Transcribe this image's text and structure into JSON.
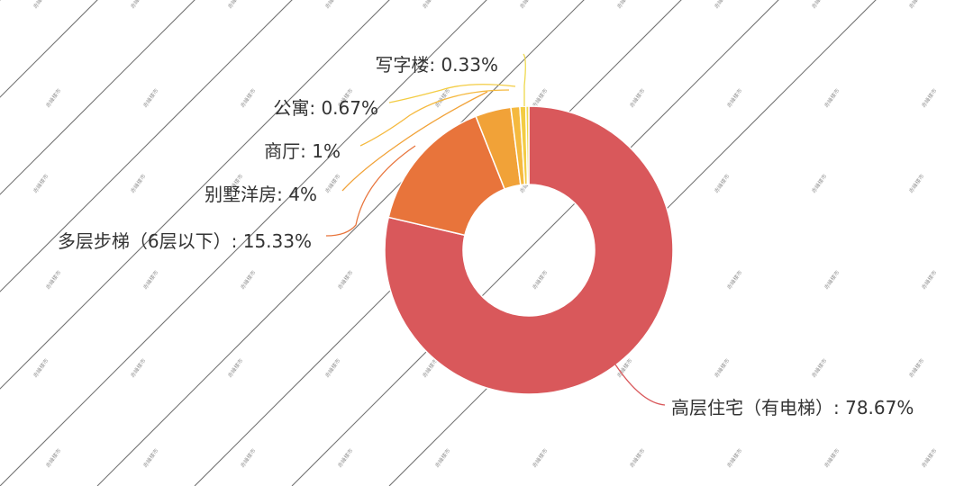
{
  "watermark": {
    "text": "赤峰楼市",
    "line_color": "#5a5a5a"
  },
  "chart_data": {
    "type": "pie",
    "subtype": "donut",
    "title": "",
    "slices": [
      {
        "label": "高层住宅（有电梯）",
        "percent_text": "78.67%",
        "value": 78.67,
        "color": "#d9585b"
      },
      {
        "label": "多层步梯（6层以下）",
        "percent_text": "15.33%",
        "value": 15.33,
        "color": "#e8743b"
      },
      {
        "label": "别墅洋房",
        "percent_text": "4%",
        "value": 4,
        "color": "#f1a238"
      },
      {
        "label": "商厅",
        "percent_text": "1%",
        "value": 1,
        "color": "#f5b93e"
      },
      {
        "label": "公寓",
        "percent_text": "0.67%",
        "value": 0.67,
        "color": "#f3cc43"
      },
      {
        "label": "写字楼",
        "percent_text": "0.33%",
        "value": 0.33,
        "color": "#eed84c"
      }
    ],
    "legend": "none"
  }
}
